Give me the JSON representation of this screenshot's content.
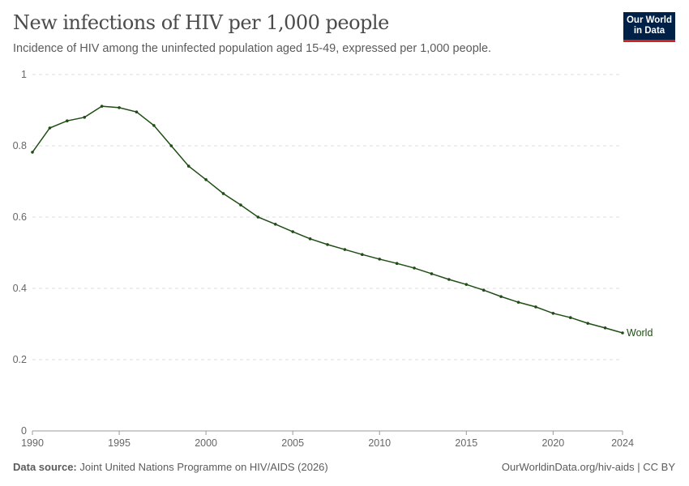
{
  "header": {
    "title": "New infections of HIV per 1,000 people",
    "subtitle": "Incidence of HIV among the uninfected population aged 15-49, expressed per 1,000 people.",
    "logo": "Our World in Data",
    "logo_line1": "Our World",
    "logo_line2": "in Data"
  },
  "footer": {
    "source_label": "Data source:",
    "source": "Joint United Nations Programme on HIV/AIDS (2026)",
    "link": "OurWorldinData.org/hiv-aids | CC BY"
  },
  "chart_data": {
    "type": "line",
    "title": "New infections of HIV per 1,000 people",
    "xlim": [
      1990,
      2024
    ],
    "ylim": [
      0,
      1
    ],
    "grid": "horizontal dashed",
    "xticks": [
      1990,
      1995,
      2000,
      2005,
      2010,
      2015,
      2020,
      2024
    ],
    "yticks": [
      0,
      0.2,
      0.4,
      0.6,
      0.8,
      1
    ],
    "ytick_labels": [
      "0",
      "0.2",
      "0.4",
      "0.6",
      "0.8",
      "1"
    ],
    "series": [
      {
        "name": "World",
        "color": "#1f4d15",
        "x": [
          1990,
          1991,
          1992,
          1993,
          1994,
          1995,
          1996,
          1997,
          1998,
          1999,
          2000,
          2001,
          2002,
          2003,
          2004,
          2005,
          2006,
          2007,
          2008,
          2009,
          2010,
          2011,
          2012,
          2013,
          2014,
          2015,
          2016,
          2017,
          2018,
          2019,
          2020,
          2021,
          2022,
          2023,
          2024
        ],
        "values": [
          0.782,
          0.85,
          0.87,
          0.88,
          0.911,
          0.907,
          0.895,
          0.857,
          0.8,
          0.743,
          0.705,
          0.666,
          0.634,
          0.6,
          0.58,
          0.559,
          0.539,
          0.523,
          0.509,
          0.495,
          0.482,
          0.47,
          0.457,
          0.441,
          0.425,
          0.411,
          0.395,
          0.377,
          0.361,
          0.348,
          0.33,
          0.318,
          0.302,
          0.289,
          0.275
        ]
      }
    ]
  }
}
